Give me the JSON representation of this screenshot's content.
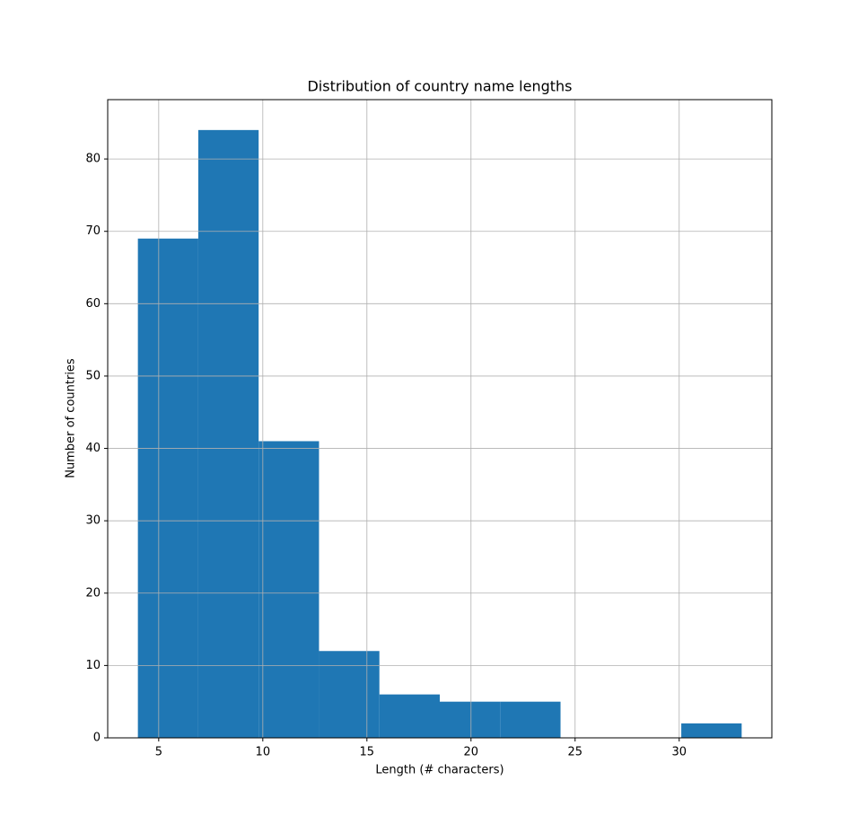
{
  "chart_data": {
    "type": "histogram",
    "title": "Distribution of country name lengths",
    "x_label": "Length (# characters)",
    "y_label": "Number of countries",
    "bins": [
      4,
      6.9,
      9.8,
      12.7,
      15.6,
      18.5,
      21.4,
      24.3,
      27.2,
      30.1,
      33
    ],
    "values": [
      69,
      84,
      41,
      12,
      6,
      5,
      5,
      0,
      0,
      2
    ],
    "color": "#1f77b4",
    "xlim": [
      2.55,
      34.45
    ],
    "xticks": [
      5,
      10,
      15,
      20,
      25,
      30
    ],
    "ylim": [
      0,
      88.2
    ],
    "yticks": [
      0,
      10,
      20,
      30,
      40,
      50,
      60,
      70,
      80
    ],
    "grid": true
  }
}
